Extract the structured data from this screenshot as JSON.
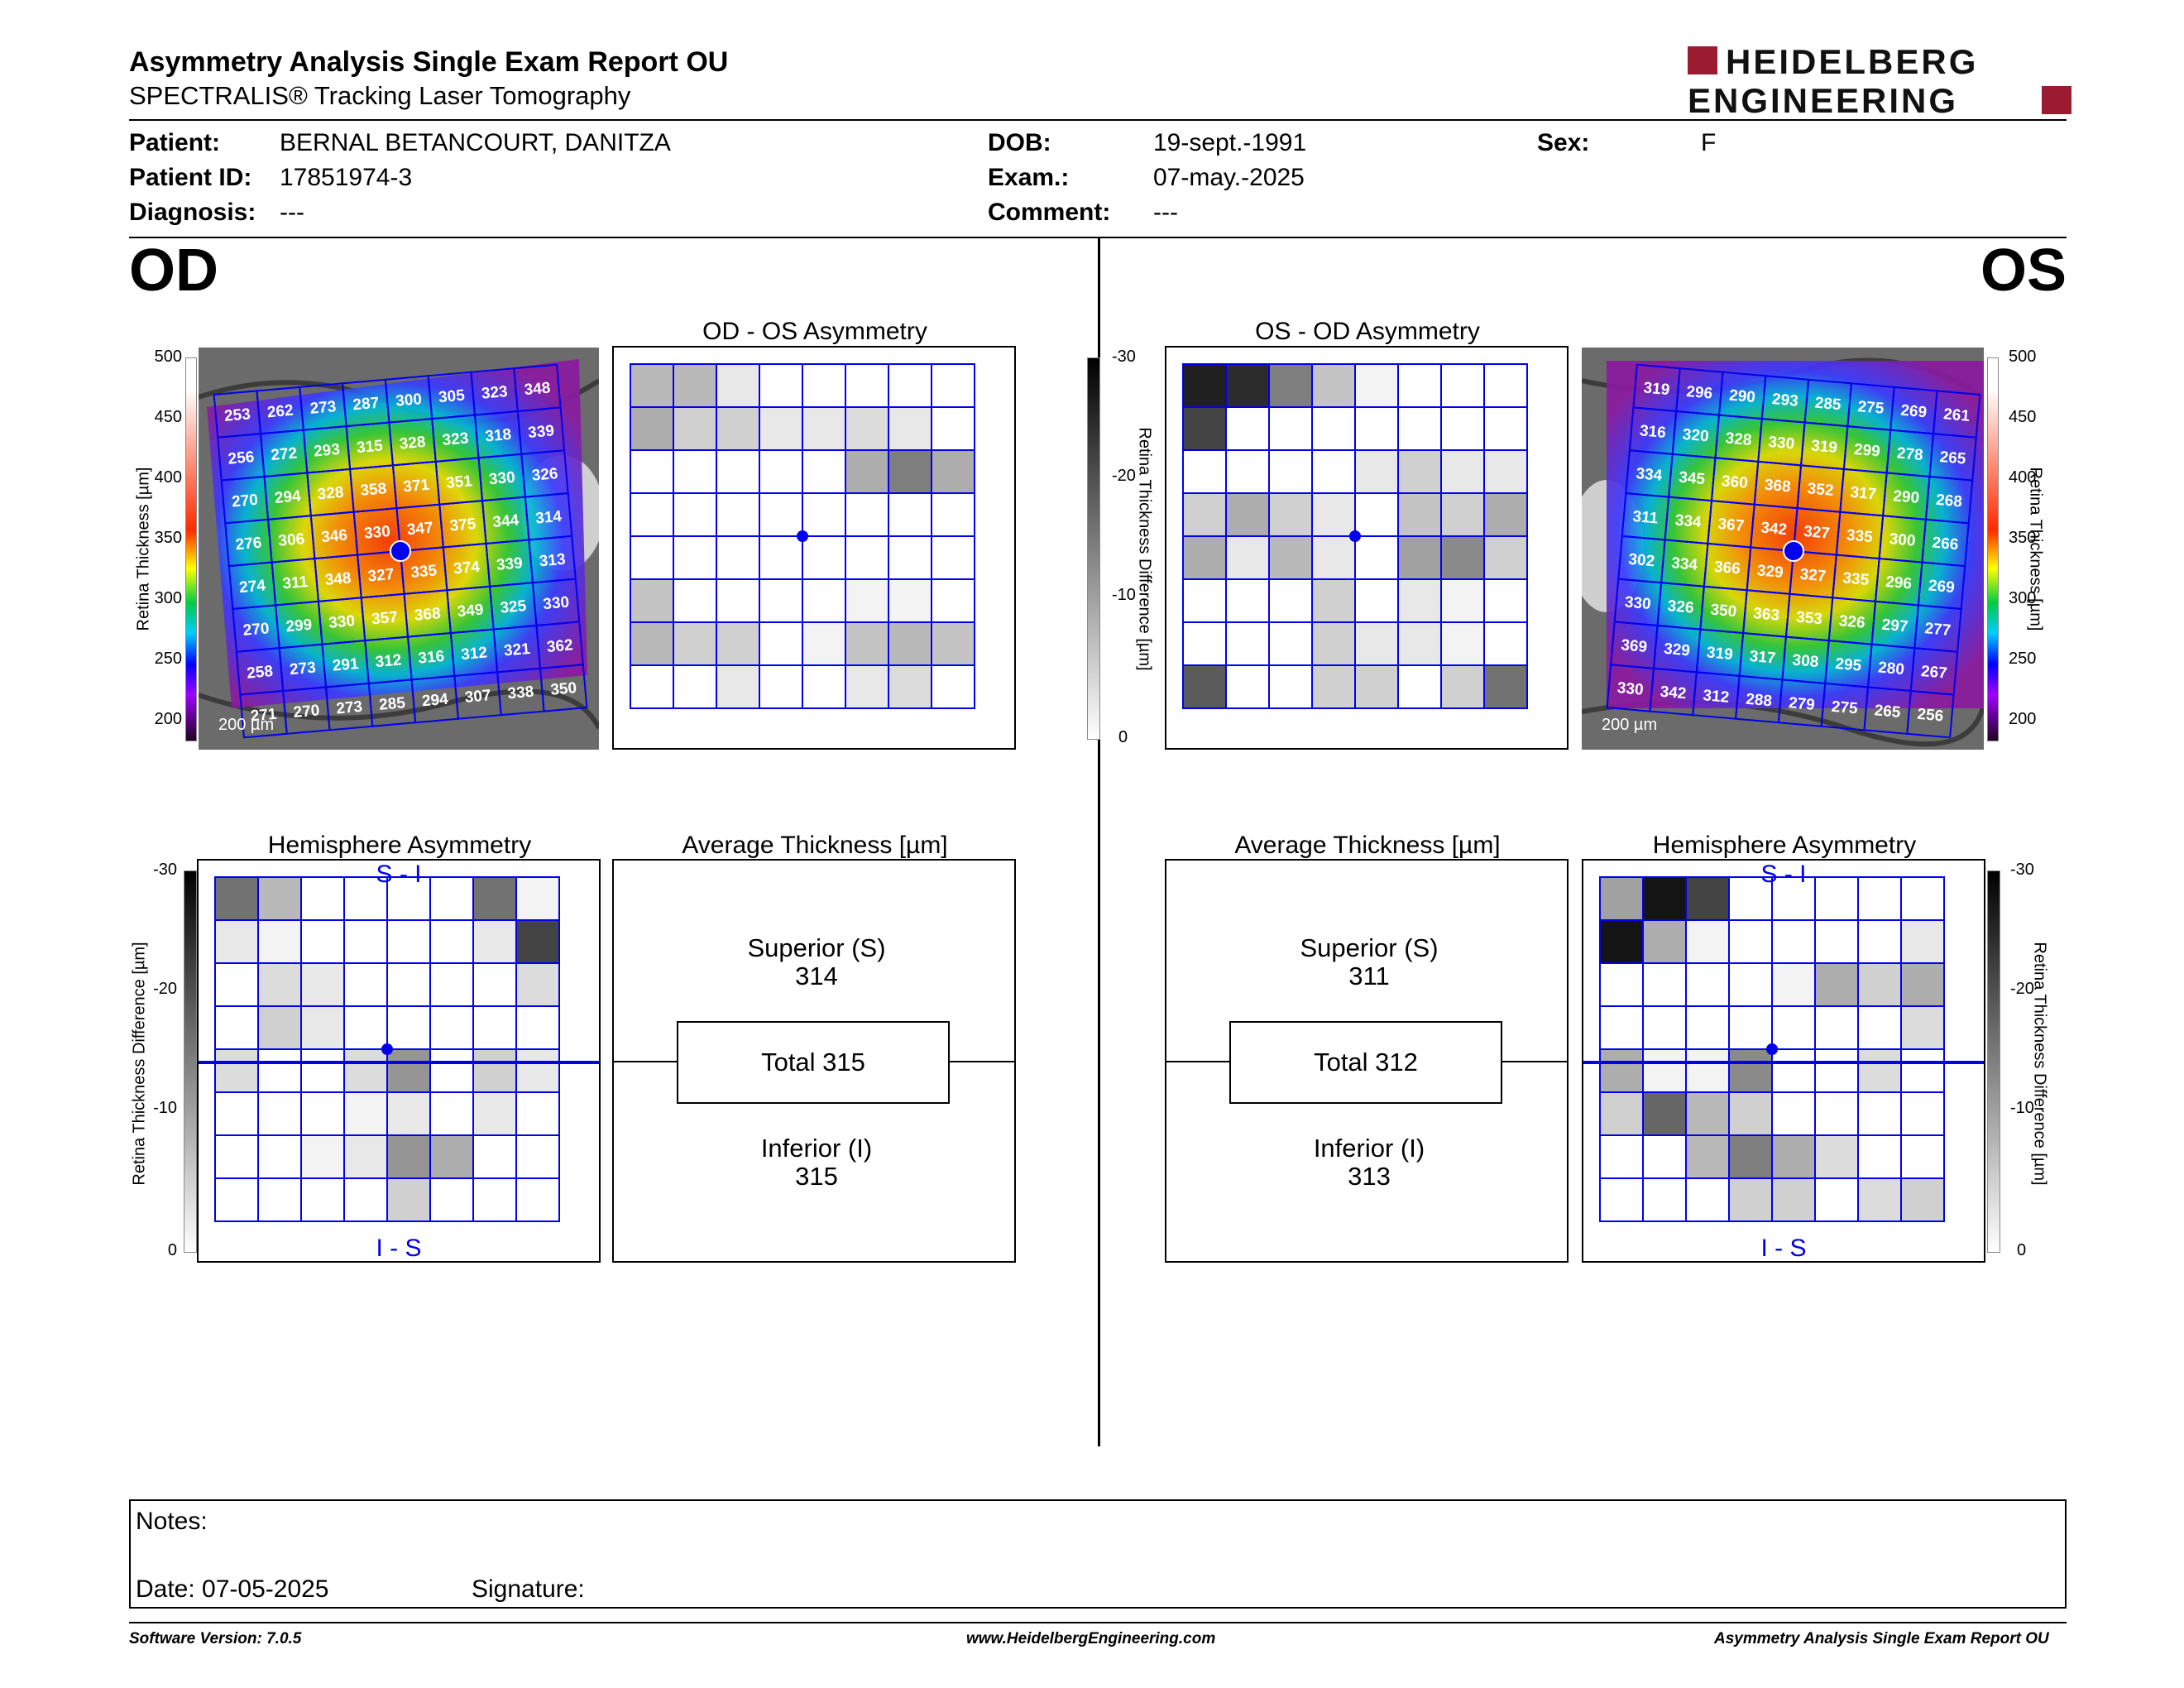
{
  "report": {
    "title": "Asymmetry Analysis Single Exam Report OU",
    "subtitle": "SPECTRALIS® Tracking Laser Tomography",
    "logo_line1": "HEIDELBERG",
    "logo_line2": "ENGINEERING",
    "brand_color": "#9b1b30"
  },
  "patient": {
    "patient_label": "Patient:",
    "patient_value": "BERNAL BETANCOURT, DANITZA",
    "id_label": "Patient ID:",
    "id_value": "17851974-3",
    "diagnosis_label": "Diagnosis:",
    "diagnosis_value": "---",
    "dob_label": "DOB:",
    "dob_value": "19-sept.-1991",
    "exam_label": "Exam.:",
    "exam_value": "07-may.-2025",
    "comment_label": "Comment:",
    "comment_value": "---",
    "sex_label": "Sex:",
    "sex_value": "F"
  },
  "od": {
    "eye_label": "OD",
    "asym_title": "OD - OS Asymmetry",
    "hemi_title": "Hemisphere Asymmetry",
    "avg_title": "Average Thickness [µm]",
    "superior_label": "Superior (S)",
    "superior_value": "314",
    "total_label": "Total 315",
    "inferior_label": "Inferior (I)",
    "inferior_value": "315",
    "si_label": "S - I",
    "is_label": "I - S",
    "scale_label": "200 µm",
    "thickness_grid": [
      [
        253,
        262,
        273,
        287,
        300,
        305,
        323,
        348
      ],
      [
        256,
        272,
        293,
        315,
        328,
        323,
        318,
        339
      ],
      [
        270,
        294,
        328,
        358,
        371,
        351,
        330,
        326
      ],
      [
        276,
        306,
        346,
        330,
        347,
        375,
        344,
        314
      ],
      [
        274,
        311,
        348,
        327,
        335,
        374,
        339,
        313
      ],
      [
        270,
        299,
        330,
        357,
        368,
        349,
        325,
        330
      ],
      [
        258,
        273,
        291,
        312,
        316,
        312,
        321,
        362
      ],
      [
        271,
        270,
        273,
        285,
        294,
        307,
        338,
        350
      ]
    ],
    "asym_shades": [
      [
        0.3,
        0.3,
        0.1,
        0,
        0,
        0,
        0,
        0
      ],
      [
        0.35,
        0.2,
        0.2,
        0.1,
        0.1,
        0.15,
        0.1,
        0
      ],
      [
        0,
        0,
        0,
        0,
        0,
        0.35,
        0.55,
        0.35
      ],
      [
        0,
        0,
        0,
        0,
        0,
        0,
        0,
        0
      ],
      [
        0,
        0,
        0,
        0,
        0,
        0,
        0,
        0
      ],
      [
        0.25,
        0,
        0,
        0,
        0,
        0.05,
        0.05,
        0
      ],
      [
        0.3,
        0.2,
        0.2,
        0,
        0.05,
        0.25,
        0.3,
        0.25
      ],
      [
        0,
        0,
        0.1,
        0,
        0,
        0.1,
        0.15,
        0
      ]
    ],
    "hemi_shades": [
      [
        0.6,
        0.3,
        0,
        0,
        0,
        0,
        0.6,
        0.05
      ],
      [
        0.1,
        0.05,
        0,
        0,
        0,
        0,
        0.1,
        0.8
      ],
      [
        0,
        0.15,
        0.1,
        0,
        0,
        0,
        0,
        0.15
      ],
      [
        0,
        0.2,
        0.1,
        0,
        0,
        0,
        0,
        0
      ],
      [
        0.15,
        0,
        0,
        0.15,
        0.45,
        0,
        0.2,
        0.1
      ],
      [
        0,
        0,
        0,
        0.05,
        0.1,
        0,
        0.1,
        0
      ],
      [
        0,
        0,
        0.05,
        0.1,
        0.45,
        0.35,
        0,
        0
      ],
      [
        0,
        0,
        0,
        0,
        0.2,
        0,
        0,
        0
      ]
    ]
  },
  "os": {
    "eye_label": "OS",
    "asym_title": "OS - OD Asymmetry",
    "hemi_title": "Hemisphere Asymmetry",
    "avg_title": "Average Thickness [µm]",
    "superior_label": "Superior (S)",
    "superior_value": "311",
    "total_label": "Total 312",
    "inferior_label": "Inferior (I)",
    "inferior_value": "313",
    "si_label": "S - I",
    "is_label": "I - S",
    "scale_label": "200 µm",
    "thickness_grid": [
      [
        319,
        296,
        290,
        293,
        285,
        275,
        269,
        261
      ],
      [
        316,
        320,
        328,
        330,
        319,
        299,
        278,
        265
      ],
      [
        334,
        345,
        360,
        368,
        352,
        317,
        290,
        268
      ],
      [
        311,
        334,
        367,
        342,
        327,
        335,
        300,
        266
      ],
      [
        302,
        334,
        366,
        329,
        327,
        335,
        296,
        269
      ],
      [
        330,
        326,
        350,
        363,
        353,
        326,
        297,
        277
      ],
      [
        369,
        329,
        319,
        317,
        308,
        295,
        280,
        267
      ],
      [
        330,
        342,
        312,
        288,
        279,
        275,
        265,
        256
      ]
    ],
    "asym_shades": [
      [
        0.95,
        0.9,
        0.55,
        0.25,
        0.05,
        0,
        0,
        0
      ],
      [
        0.8,
        0,
        0,
        0,
        0,
        0,
        0,
        0
      ],
      [
        0,
        0,
        0,
        0,
        0.1,
        0.2,
        0.1,
        0.1
      ],
      [
        0.2,
        0.35,
        0.2,
        0.1,
        0,
        0.25,
        0.2,
        0.35
      ],
      [
        0.35,
        0.1,
        0.3,
        0.1,
        0,
        0.4,
        0.5,
        0.2
      ],
      [
        0,
        0,
        0,
        0.2,
        0,
        0.1,
        0.05,
        0
      ],
      [
        0,
        0,
        0,
        0.2,
        0.1,
        0.1,
        0.05,
        0
      ],
      [
        0.7,
        0,
        0,
        0.2,
        0.2,
        0,
        0.2,
        0.6
      ]
    ],
    "hemi_shades": [
      [
        0.4,
        1,
        0.8,
        0,
        0,
        0,
        0,
        0
      ],
      [
        1,
        0.35,
        0.05,
        0,
        0,
        0,
        0,
        0.1
      ],
      [
        0,
        0,
        0,
        0,
        0.05,
        0.35,
        0.2,
        0.35
      ],
      [
        0,
        0,
        0,
        0,
        0,
        0,
        0,
        0.15
      ],
      [
        0.35,
        0.05,
        0.05,
        0.5,
        0,
        0,
        0.15,
        0
      ],
      [
        0.2,
        0.65,
        0.3,
        0.2,
        0,
        0,
        0,
        0
      ],
      [
        0,
        0,
        0.3,
        0.55,
        0.35,
        0.15,
        0,
        0
      ],
      [
        0,
        0,
        0,
        0.2,
        0.2,
        0,
        0.15,
        0.2
      ]
    ]
  },
  "thickness_axis": {
    "label": "Retina Thickness [µm]",
    "ticks": [
      "500",
      "450",
      "400",
      "350",
      "300",
      "250",
      "200"
    ]
  },
  "difference_axis": {
    "label": "Retina Thickness Difference [µm]",
    "ticks": [
      "-30",
      "-20",
      "-10",
      "0"
    ]
  },
  "notes": {
    "notes_label": "Notes:",
    "date_label": "Date: 07-05-2025",
    "signature_label": "Signature:"
  },
  "footer": {
    "software": "Software Version: 7.0.5",
    "website": "www.HeidelbergEngineering.com",
    "report_name": "Asymmetry Analysis Single Exam Report OU"
  }
}
